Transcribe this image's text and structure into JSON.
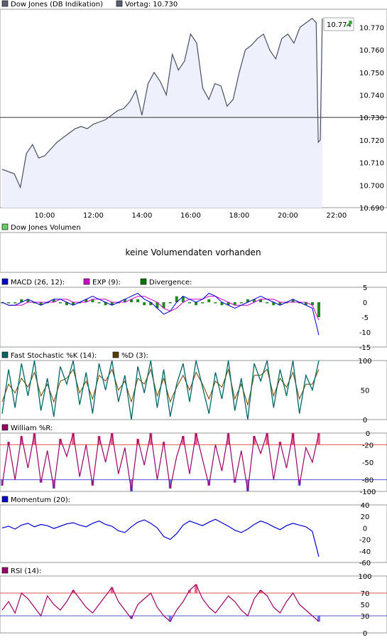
{
  "chart_data": [
    {
      "type": "line",
      "legend": [
        {
          "label": "Dow Jones (DB Indikation)",
          "color": "#5a6070"
        },
        {
          "label": "Vortag: 10.730",
          "color": "#5a6070"
        }
      ],
      "x_ticks": [
        "10:00",
        "12:00",
        "14:00",
        "16:00",
        "18:00",
        "20:00",
        "22:00"
      ],
      "y_ticks": [
        "10.770",
        "10.760",
        "10.750",
        "10.740",
        "10.730",
        "10.720",
        "10.710",
        "10.700",
        "10.690"
      ],
      "ylim": [
        10690,
        10778
      ],
      "previous_close": 10730,
      "last_value_label": "10.774",
      "series": [
        {
          "x": [
            "08:15",
            "08:45",
            "09:00",
            "09:15",
            "09:30",
            "09:45",
            "10:00",
            "10:15",
            "10:30",
            "10:45",
            "11:00",
            "11:15",
            "11:30",
            "11:45",
            "12:00",
            "12:15",
            "12:30",
            "12:45",
            "13:00",
            "13:15",
            "13:30",
            "13:45",
            "14:00",
            "14:15",
            "14:30",
            "14:45",
            "15:00",
            "15:15",
            "15:30",
            "15:45",
            "16:00",
            "16:15",
            "16:30",
            "16:45",
            "17:00",
            "17:15",
            "17:30",
            "17:45",
            "18:00",
            "18:15",
            "18:30",
            "18:45",
            "19:00",
            "19:15",
            "19:30",
            "19:45",
            "20:00",
            "20:15",
            "20:30",
            "20:45",
            "21:00",
            "21:10",
            "21:15",
            "21:20",
            "21:25"
          ],
          "y": [
            10707,
            10705,
            10699,
            10714,
            10718,
            10712,
            10713,
            10716,
            10719,
            10721,
            10723,
            10725,
            10726,
            10725,
            10727,
            10728,
            10729,
            10731,
            10733,
            10734,
            10737,
            10742,
            10731,
            10745,
            10750,
            10746,
            10740,
            10758,
            10751,
            10755,
            10767,
            10763,
            10743,
            10738,
            10745,
            10744,
            10735,
            10738,
            10750,
            10760,
            10762,
            10765,
            10767,
            10760,
            10756,
            10765,
            10767,
            10763,
            10770,
            10772,
            10774,
            10772,
            10719,
            10720,
            10774
          ]
        }
      ]
    },
    {
      "type": "bar",
      "legend": [
        {
          "label": "Dow Jones Volumen",
          "color": "#66cc66"
        }
      ],
      "message": "keine Volumendaten vorhanden"
    },
    {
      "type": "line",
      "legend": [
        {
          "label": "MACD (26, 12):",
          "color": "#0000cc"
        },
        {
          "label": "EXP (9):",
          "color": "#cc00cc"
        },
        {
          "label": "Divergence:",
          "color": "#007700"
        }
      ],
      "y_ticks": [
        "5",
        "0",
        "-5",
        "-10",
        "-15"
      ],
      "ylim": [
        -15,
        5
      ],
      "series": [
        {
          "name": "MACD (26, 12):",
          "values": [
            0,
            -1,
            -1,
            0,
            1,
            0,
            -1,
            0,
            1,
            1,
            0,
            -1,
            0,
            1,
            2,
            1,
            0,
            -1,
            0,
            1,
            2,
            3,
            1,
            0,
            -2,
            -4,
            -3,
            0,
            2,
            1,
            0,
            1,
            3,
            2,
            0,
            -1,
            -2,
            -1,
            0,
            1,
            2,
            1,
            0,
            -1,
            0,
            1,
            0,
            -1,
            -2,
            -11
          ]
        },
        {
          "name": "EXP (9):",
          "values": [
            0,
            -1,
            -1,
            -1,
            0,
            0,
            0,
            0,
            0,
            1,
            1,
            0,
            0,
            0,
            1,
            1,
            1,
            0,
            0,
            0,
            1,
            2,
            2,
            1,
            0,
            -2,
            -3,
            -2,
            0,
            1,
            1,
            1,
            2,
            2,
            1,
            0,
            -1,
            -1,
            -1,
            0,
            1,
            1,
            1,
            0,
            0,
            0,
            0,
            0,
            -1,
            -6
          ]
        }
      ]
    },
    {
      "type": "line",
      "legend": [
        {
          "label": "Fast Stochastic %K (14):",
          "color": "#006666"
        },
        {
          "label": "%D (3):",
          "color": "#5c3d00"
        }
      ],
      "y_ticks": [
        "100",
        "50",
        "0"
      ],
      "ylim": [
        0,
        100
      ],
      "series": [
        {
          "name": "Fast Stochastic %K (14):",
          "values": [
            10,
            85,
            20,
            95,
            40,
            100,
            15,
            70,
            5,
            90,
            60,
            100,
            25,
            80,
            10,
            95,
            50,
            100,
            30,
            75,
            0,
            90,
            45,
            100,
            20,
            85,
            5,
            60,
            95,
            30,
            100,
            55,
            10,
            80,
            35,
            100,
            15,
            70,
            0,
            95,
            65,
            100,
            20,
            85,
            40,
            100,
            10,
            75,
            50,
            100
          ]
        },
        {
          "name": "%D (3):",
          "values": [
            30,
            60,
            45,
            70,
            55,
            80,
            40,
            60,
            30,
            65,
            70,
            85,
            45,
            65,
            35,
            75,
            65,
            85,
            50,
            65,
            30,
            70,
            60,
            85,
            40,
            70,
            30,
            55,
            75,
            50,
            80,
            60,
            35,
            65,
            55,
            85,
            35,
            60,
            25,
            75,
            75,
            85,
            40,
            70,
            55,
            80,
            35,
            60,
            60,
            85
          ]
        }
      ]
    },
    {
      "type": "line",
      "legend": [
        {
          "label": "William %R:",
          "color": "#990066"
        }
      ],
      "y_ticks": [
        "0",
        "-20",
        "-50",
        "-80",
        "-100"
      ],
      "ylim": [
        -100,
        0
      ],
      "reference_lines": [
        -20,
        -80
      ],
      "series": [
        {
          "name": "William %R:",
          "values": [
            -90,
            -15,
            -80,
            -5,
            -60,
            0,
            -85,
            -30,
            -95,
            -10,
            -40,
            0,
            -75,
            -20,
            -90,
            -5,
            -50,
            0,
            -70,
            -25,
            -100,
            -10,
            -55,
            0,
            -80,
            -15,
            -95,
            -40,
            -5,
            -70,
            0,
            -45,
            -90,
            -20,
            -65,
            0,
            -85,
            -30,
            -100,
            -5,
            -35,
            0,
            -80,
            -15,
            -60,
            0,
            -90,
            -25,
            -50,
            0
          ]
        }
      ]
    },
    {
      "type": "line",
      "legend": [
        {
          "label": "Momentum (20):",
          "color": "#0000cc"
        }
      ],
      "y_ticks": [
        "40",
        "20",
        "0",
        "-20",
        "-40",
        "-60"
      ],
      "ylim": [
        -60,
        40
      ],
      "series": [
        {
          "name": "Momentum (20):",
          "values": [
            0,
            3,
            -2,
            5,
            8,
            2,
            6,
            4,
            -1,
            3,
            7,
            9,
            5,
            2,
            8,
            12,
            6,
            3,
            -5,
            -8,
            2,
            10,
            14,
            8,
            0,
            -15,
            -20,
            -10,
            5,
            12,
            8,
            4,
            10,
            15,
            9,
            3,
            -4,
            -8,
            -2,
            6,
            12,
            8,
            2,
            -3,
            4,
            8,
            5,
            2,
            -6,
            -50
          ]
        }
      ]
    },
    {
      "type": "line",
      "legend": [
        {
          "label": "RSI (14):",
          "color": "#990066"
        }
      ],
      "y_ticks": [
        "100",
        "70",
        "50",
        "30",
        "0"
      ],
      "ylim": [
        0,
        100
      ],
      "reference_lines": [
        30,
        70
      ],
      "series": [
        {
          "name": "RSI (14):",
          "values": [
            40,
            55,
            35,
            70,
            60,
            45,
            30,
            65,
            50,
            40,
            55,
            75,
            60,
            45,
            35,
            50,
            65,
            80,
            55,
            40,
            25,
            50,
            60,
            70,
            45,
            30,
            20,
            40,
            55,
            75,
            85,
            60,
            45,
            35,
            50,
            65,
            55,
            40,
            30,
            60,
            75,
            65,
            45,
            35,
            55,
            70,
            50,
            40,
            30,
            20
          ]
        }
      ]
    }
  ]
}
